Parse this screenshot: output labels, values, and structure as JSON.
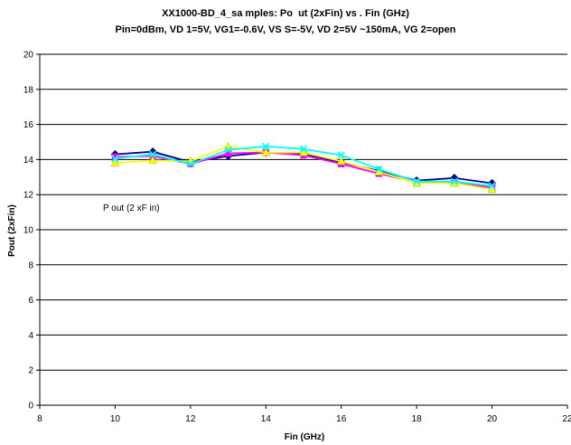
{
  "chart_data": {
    "type": "line",
    "title": "XX1000-BD_4_sa mples: Po  ut (2xFin) vs . Fin (GHz)",
    "subtitle": "Pin=0dBm, VD 1=5V, VG1=-0.6V, VS S=-5V, VD 2=5V ~150mA, VG 2=open",
    "xlabel": "Fin (GHz)",
    "ylabel": "Pout (2xFin)",
    "annotation": "P out (2 xF in)",
    "xlim": [
      8,
      22
    ],
    "ylim": [
      0,
      20
    ],
    "x_ticks": [
      "8",
      "10",
      "12",
      "14",
      "16",
      "18",
      "20",
      "22"
    ],
    "y_ticks": [
      "0",
      "2",
      "4",
      "6",
      "8",
      "10",
      "12",
      "14",
      "16",
      "18",
      "20"
    ],
    "grid": "horizontal",
    "legend": "none",
    "x": [
      10,
      11,
      12,
      13,
      14,
      15,
      16,
      17,
      18,
      19,
      20
    ],
    "series": [
      {
        "color": "#000080",
        "marker": "diamond",
        "values": [
          14.3,
          14.45,
          13.85,
          14.2,
          14.4,
          14.3,
          13.85,
          13.35,
          12.8,
          12.95,
          12.65
        ]
      },
      {
        "color": "#ff00ff",
        "marker": "square",
        "values": [
          14.15,
          14.2,
          13.75,
          14.35,
          14.4,
          14.25,
          13.75,
          13.2,
          12.7,
          12.7,
          12.4
        ]
      },
      {
        "color": "#ffff00",
        "marker": "triangle",
        "values": [
          13.8,
          13.95,
          13.9,
          14.75,
          14.4,
          14.4,
          13.9,
          13.3,
          12.65,
          12.65,
          12.3
        ]
      },
      {
        "color": "#00ffff",
        "marker": "x",
        "values": [
          14.05,
          14.3,
          13.75,
          14.55,
          14.75,
          14.6,
          14.25,
          13.45,
          12.75,
          12.75,
          12.5
        ]
      }
    ]
  }
}
